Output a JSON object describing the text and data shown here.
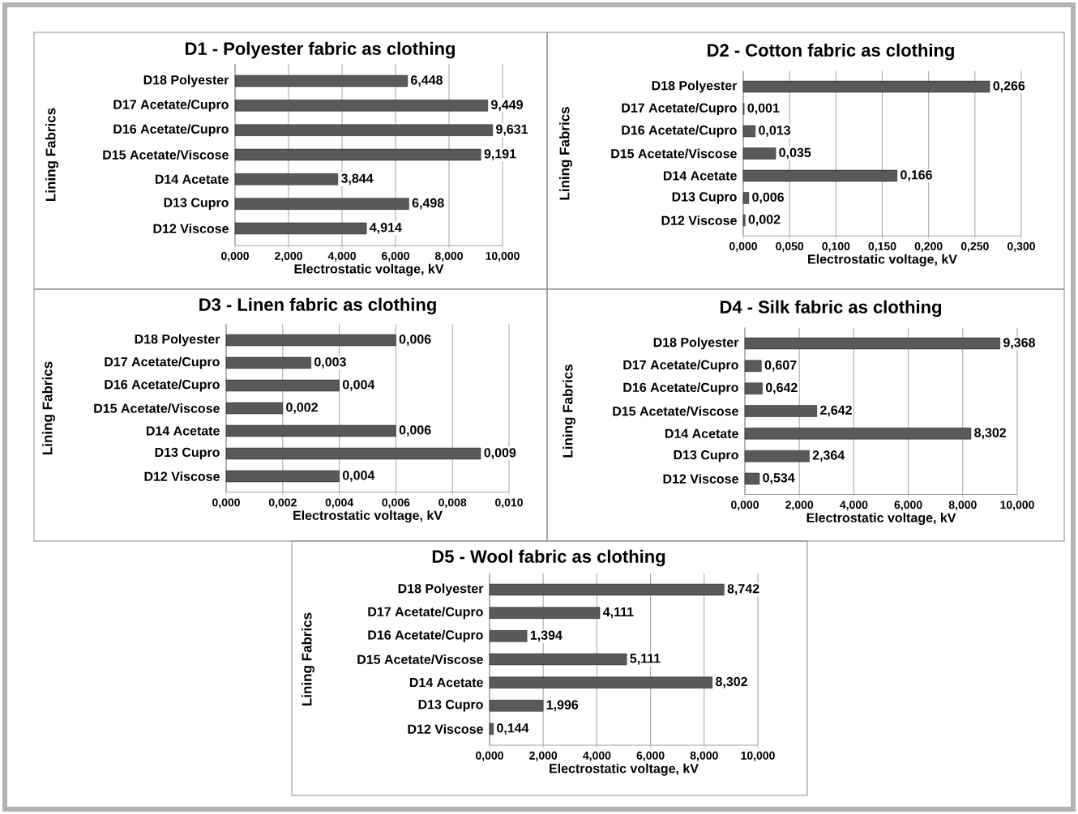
{
  "chart_data": [
    {
      "type": "bar",
      "orientation": "horizontal",
      "title": "D1 - Polyester fabric as clothing",
      "xlabel": "Electrostatic voltage, kV",
      "ylabel": "Lining Fabrics",
      "grid": "x",
      "color": "#595959",
      "categories": [
        "D18 Polyester",
        "D17 Acetate/Cupro",
        "D16 Acetate/Cupro",
        "D15 Acetate/Viscose",
        "D14 Acetate",
        "D13 Cupro",
        "D12 Viscose"
      ],
      "values": [
        6.448,
        9.449,
        9.631,
        9.191,
        3.844,
        6.498,
        4.914
      ],
      "value_labels": [
        "6,448",
        "9,449",
        "9,631",
        "9,191",
        "3,844",
        "6,498",
        "4,914"
      ],
      "xlim": [
        0,
        10
      ],
      "xticks": [
        {
          "value": 0,
          "label": "0,000"
        },
        {
          "value": 2,
          "label": "2,000"
        },
        {
          "value": 4,
          "label": "4,000"
        },
        {
          "value": 6,
          "label": "6,000"
        },
        {
          "value": 8,
          "label": "8,000"
        },
        {
          "value": 10,
          "label": "10,000"
        }
      ]
    },
    {
      "type": "bar",
      "orientation": "horizontal",
      "title": "D2 - Cotton fabric as clothing",
      "xlabel": "Electrostatic voltage, kV",
      "ylabel": "Lining Fabrics",
      "grid": "x",
      "color": "#595959",
      "categories": [
        "D18 Polyester",
        "D17 Acetate/Cupro",
        "D16 Acetate/Cupro",
        "D15 Acetate/Viscose",
        "D14 Acetate",
        "D13 Cupro",
        "D12 Viscose"
      ],
      "values": [
        0.266,
        0.001,
        0.013,
        0.035,
        0.166,
        0.006,
        0.002
      ],
      "value_labels": [
        "0,266",
        "0,001",
        "0,013",
        "0,035",
        "0,166",
        "0,006",
        "0,002"
      ],
      "xlim": [
        0,
        0.3
      ],
      "xticks": [
        {
          "value": 0,
          "label": "0,000"
        },
        {
          "value": 0.05,
          "label": "0,050"
        },
        {
          "value": 0.1,
          "label": "0,100"
        },
        {
          "value": 0.15,
          "label": "0,150"
        },
        {
          "value": 0.2,
          "label": "0,200"
        },
        {
          "value": 0.25,
          "label": "0,250"
        },
        {
          "value": 0.3,
          "label": "0,300"
        }
      ]
    },
    {
      "type": "bar",
      "orientation": "horizontal",
      "title": "D3 - Linen fabric as clothing",
      "xlabel": "Electrostatic voltage, kV",
      "ylabel": "Lining Fabrics",
      "grid": "x",
      "color": "#595959",
      "categories": [
        "D18 Polyester",
        "D17 Acetate/Cupro",
        "D16 Acetate/Cupro",
        "D15 Acetate/Viscose",
        "D14 Acetate",
        "D13 Cupro",
        "D12 Viscose"
      ],
      "values": [
        0.006,
        0.003,
        0.004,
        0.002,
        0.006,
        0.009,
        0.004
      ],
      "value_labels": [
        "0,006",
        "0,003",
        "0,004",
        "0,002",
        "0,006",
        "0,009",
        "0,004"
      ],
      "xlim": [
        0,
        0.01
      ],
      "xticks": [
        {
          "value": 0,
          "label": "0,000"
        },
        {
          "value": 0.002,
          "label": "0,002"
        },
        {
          "value": 0.004,
          "label": "0,004"
        },
        {
          "value": 0.006,
          "label": "0,006"
        },
        {
          "value": 0.008,
          "label": "0,008"
        },
        {
          "value": 0.01,
          "label": "0,010"
        }
      ]
    },
    {
      "type": "bar",
      "orientation": "horizontal",
      "title": "D4 - Silk fabric as clothing",
      "xlabel": "Electrostatic voltage, kV",
      "ylabel": "Lining Fabrics",
      "grid": "x",
      "color": "#595959",
      "categories": [
        "D18 Polyester",
        "D17 Acetate/Cupro",
        "D16 Acetate/Cupro",
        "D15 Acetate/Viscose",
        "D14 Acetate",
        "D13 Cupro",
        "D12 Viscose"
      ],
      "values": [
        9.368,
        0.607,
        0.642,
        2.642,
        8.302,
        2.364,
        0.534
      ],
      "value_labels": [
        "9,368",
        "0,607",
        "0,642",
        "2,642",
        "8,302",
        "2,364",
        "0,534"
      ],
      "xlim": [
        0,
        10
      ],
      "xticks": [
        {
          "value": 0,
          "label": "0,000"
        },
        {
          "value": 2,
          "label": "2,000"
        },
        {
          "value": 4,
          "label": "4,000"
        },
        {
          "value": 6,
          "label": "6,000"
        },
        {
          "value": 8,
          "label": "8,000"
        },
        {
          "value": 10,
          "label": "10,000"
        }
      ]
    },
    {
      "type": "bar",
      "orientation": "horizontal",
      "title": "D5 - Wool fabric as clothing",
      "xlabel": "Electrostatic voltage, kV",
      "ylabel": "Lining Fabrics",
      "grid": "x",
      "color": "#595959",
      "categories": [
        "D18 Polyester",
        "D17 Acetate/Cupro",
        "D16 Acetate/Cupro",
        "D15 Acetate/Viscose",
        "D14 Acetate",
        "D13 Cupro",
        "D12 Viscose"
      ],
      "values": [
        8.742,
        4.111,
        1.394,
        5.111,
        8.302,
        1.996,
        0.144
      ],
      "value_labels": [
        "8,742",
        "4,111",
        "1,394",
        "5,111",
        "8,302",
        "1,996",
        "0,144"
      ],
      "xlim": [
        0,
        10
      ],
      "xticks": [
        {
          "value": 0,
          "label": "0,000"
        },
        {
          "value": 2,
          "label": "2,000"
        },
        {
          "value": 4,
          "label": "4,000"
        },
        {
          "value": 6,
          "label": "6,000"
        },
        {
          "value": 8,
          "label": "8,000"
        },
        {
          "value": 10,
          "label": "10,000"
        }
      ]
    }
  ]
}
